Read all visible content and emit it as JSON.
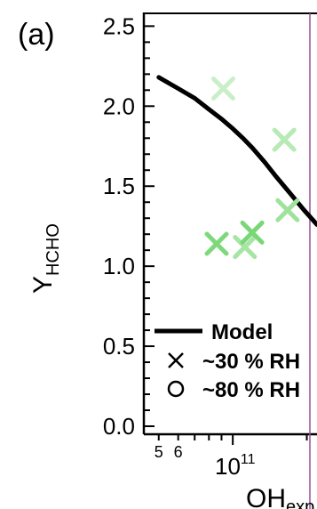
{
  "chart_data": {
    "panel_label": "(a)",
    "type": "scatter",
    "xlabel_main": "OH",
    "xlabel_sub": "exp",
    "ylabel_main": "Y",
    "ylabel_sub": "HCHO",
    "x_scale": "log",
    "x_tick_labels": [
      {
        "value": 50000000000.0,
        "label": "5"
      },
      {
        "value": 60000000000.0,
        "label": "6"
      }
    ],
    "x_decade_base": "10",
    "x_decade_exp": "11",
    "x_decade_value": 100000000000.0,
    "xlim": [
      43500000000.0,
      220000000000.0
    ],
    "ylim": [
      -0.05,
      2.58
    ],
    "y_ticks": [
      0.0,
      0.5,
      1.0,
      1.5,
      2.0,
      2.5
    ],
    "y_tick_labels": [
      "0.0",
      "0.5",
      "1.0",
      "1.5",
      "2.0",
      "2.5"
    ],
    "series": [
      {
        "name": "Model",
        "kind": "line",
        "x": [
          50000000000.0,
          60000000000.0,
          70000000000.0,
          80000000000.0,
          90000000000.0,
          100000000000.0,
          110000000000.0,
          120000000000.0,
          135000000000.0,
          150000000000.0,
          170000000000.0,
          195000000000.0,
          220000000000.0
        ],
        "y": [
          2.18,
          2.11,
          2.05,
          1.98,
          1.92,
          1.86,
          1.8,
          1.74,
          1.65,
          1.56,
          1.46,
          1.35,
          1.26
        ]
      },
      {
        "name": "~30 % RH",
        "kind": "points",
        "marker": "cross",
        "points": [
          {
            "x": 91500000000.0,
            "y": 2.11,
            "color": "#c9efc9"
          },
          {
            "x": 162000000000.0,
            "y": 1.79,
            "color": "#b7eab5"
          },
          {
            "x": 86000000000.0,
            "y": 1.14,
            "color": "#7fd97c"
          },
          {
            "x": 112000000000.0,
            "y": 1.12,
            "color": "#a6e5a3"
          },
          {
            "x": 120000000000.0,
            "y": 1.21,
            "color": "#79d776"
          },
          {
            "x": 167000000000.0,
            "y": 1.35,
            "color": "#9ee29b"
          }
        ]
      },
      {
        "name": "~80 % RH",
        "kind": "points",
        "marker": "circle",
        "points": []
      }
    ],
    "legend": {
      "placement": "lower-left",
      "entries": [
        {
          "label": "Model",
          "symbol": "line"
        },
        {
          "label": "~30 % RH",
          "symbol": "cross"
        },
        {
          "label": "~80 % RH",
          "symbol": "circle"
        }
      ]
    },
    "colors": {
      "model_line": "#000000",
      "axis": "#000000",
      "edge_line": "#9b4fa0"
    },
    "grid": false
  }
}
